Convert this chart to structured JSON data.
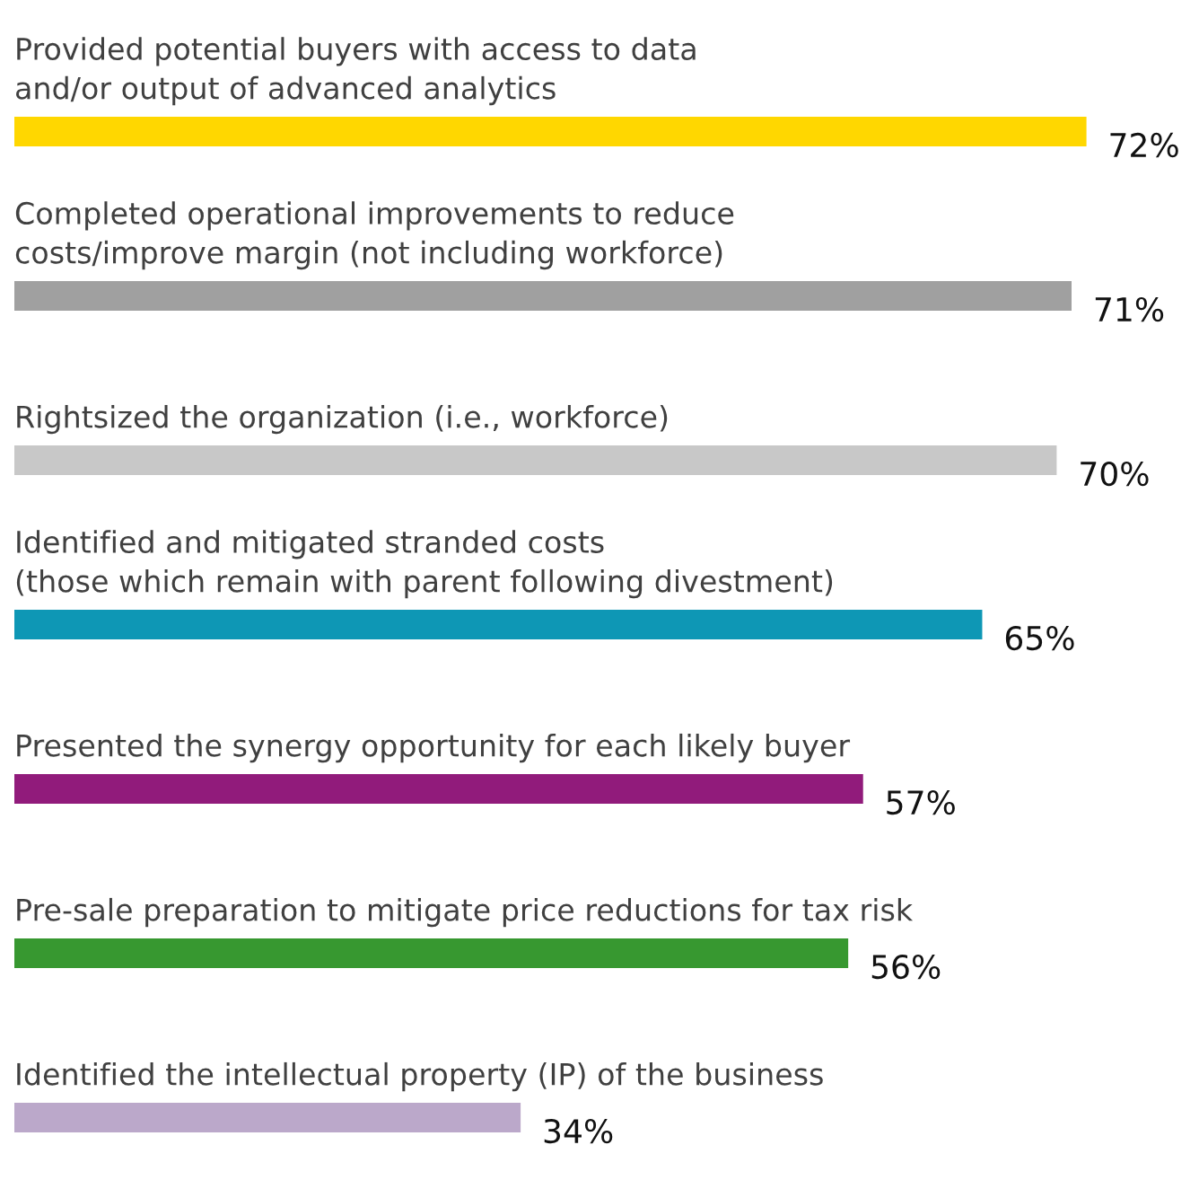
{
  "chart_data": {
    "type": "bar",
    "orientation": "horizontal",
    "categories": [
      "Provided potential buyers with access to data\nand/or output of advanced analytics",
      "Completed operational improvements to reduce\ncosts/improve margin (not including workforce)",
      "Rightsized the organization (i.e., workforce)",
      "Identified and mitigated stranded costs\n(those which remain with parent following divestment)",
      "Presented the synergy opportunity for each likely buyer",
      "Pre-sale preparation to mitigate price reductions for tax risk",
      "Identified the intellectual property (IP) of the business"
    ],
    "values": [
      72,
      71,
      70,
      65,
      57,
      56,
      34
    ],
    "value_labels": [
      "72%",
      "71%",
      "70%",
      "65%",
      "57%",
      "56%",
      "34%"
    ],
    "colors": [
      "#ffd700",
      "#a0a0a0",
      "#c8c8c8",
      "#0e97b5",
      "#911b7b",
      "#379830",
      "#bba8ca"
    ]
  }
}
